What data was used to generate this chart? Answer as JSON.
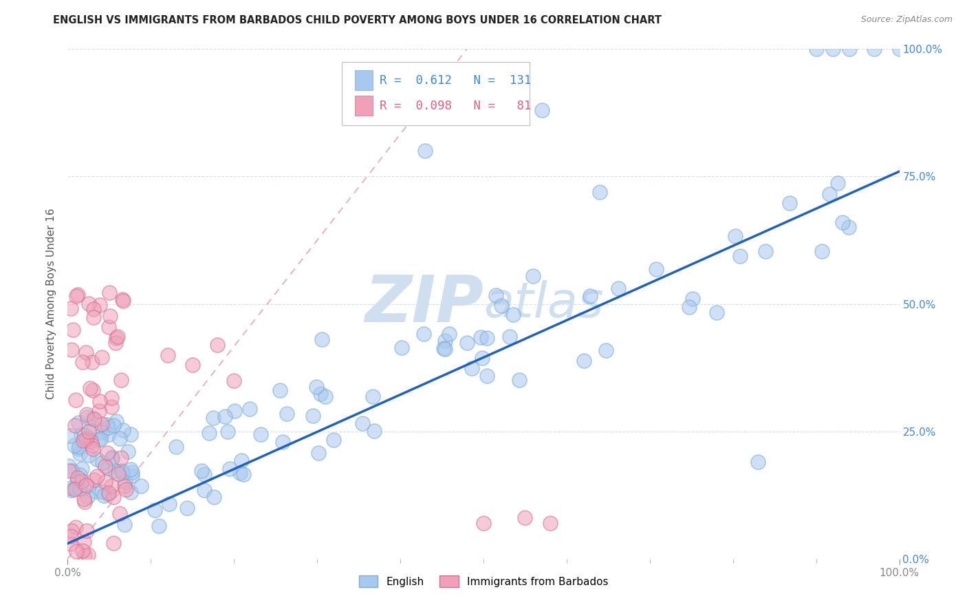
{
  "title": "ENGLISH VS IMMIGRANTS FROM BARBADOS CHILD POVERTY AMONG BOYS UNDER 16 CORRELATION CHART",
  "source": "Source: ZipAtlas.com",
  "ylabel": "Child Poverty Among Boys Under 16",
  "r_english": 0.612,
  "n_english": 131,
  "r_barbados": 0.098,
  "n_barbados": 81,
  "english_color": "#a8c8f0",
  "english_edge_color": "#7aaad0",
  "barbados_color": "#f0a0b8",
  "barbados_edge_color": "#d07090",
  "trendline_english_color": "#2060c0",
  "diagonal_color": "#e0b0b8",
  "watermark_color": "#d0dff0",
  "ytick_labels": [
    "0.0%",
    "25.0%",
    "50.0%",
    "75.0%",
    "100.0%"
  ],
  "ytick_values": [
    0.0,
    0.25,
    0.5,
    0.75,
    1.0
  ],
  "grid_color": "#c8d8e8",
  "bg_color": "#ffffff",
  "title_fontsize": 10.5,
  "axis_label_fontsize": 11,
  "tick_color": "#888888",
  "right_tick_color": "#4488cc"
}
